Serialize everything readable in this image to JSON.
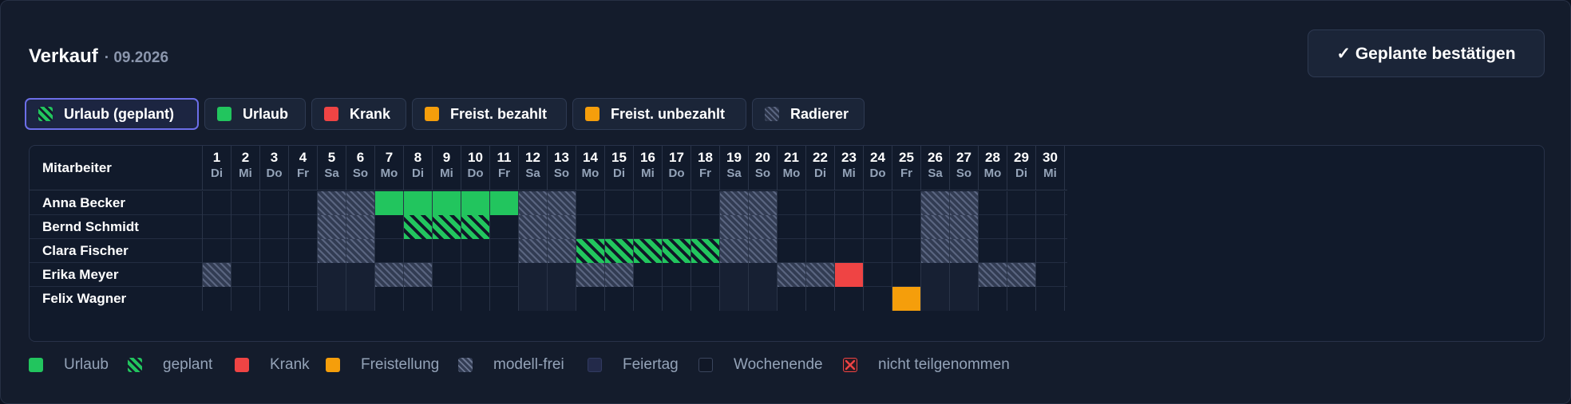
{
  "header": {
    "title": "Verkauf",
    "subtitle": "· 09.2026"
  },
  "actions": {
    "confirm_label": "✓ Geplante bestätigen"
  },
  "tools": [
    {
      "label": "Urlaub (geplant)",
      "swatch": "planned",
      "active": true
    },
    {
      "label": "Urlaub",
      "swatch": "green",
      "active": false
    },
    {
      "label": "Krank",
      "swatch": "red",
      "active": false
    },
    {
      "label": "Freist. bezahlt",
      "swatch": "orange",
      "active": false
    },
    {
      "label": "Freist. unbezahlt",
      "swatch": "orange",
      "active": false
    },
    {
      "label": "Radierer",
      "swatch": "eraser",
      "active": false
    }
  ],
  "grid": {
    "employee_header": "Mitarbeiter",
    "days": [
      {
        "n": "1",
        "wd": "Di"
      },
      {
        "n": "2",
        "wd": "Mi"
      },
      {
        "n": "3",
        "wd": "Do"
      },
      {
        "n": "4",
        "wd": "Fr"
      },
      {
        "n": "5",
        "wd": "Sa"
      },
      {
        "n": "6",
        "wd": "So"
      },
      {
        "n": "7",
        "wd": "Mo"
      },
      {
        "n": "8",
        "wd": "Di"
      },
      {
        "n": "9",
        "wd": "Mi"
      },
      {
        "n": "10",
        "wd": "Do"
      },
      {
        "n": "11",
        "wd": "Fr"
      },
      {
        "n": "12",
        "wd": "Sa"
      },
      {
        "n": "13",
        "wd": "So"
      },
      {
        "n": "14",
        "wd": "Mo"
      },
      {
        "n": "15",
        "wd": "Di"
      },
      {
        "n": "16",
        "wd": "Mi"
      },
      {
        "n": "17",
        "wd": "Do"
      },
      {
        "n": "18",
        "wd": "Fr"
      },
      {
        "n": "19",
        "wd": "Sa"
      },
      {
        "n": "20",
        "wd": "So"
      },
      {
        "n": "21",
        "wd": "Mo"
      },
      {
        "n": "22",
        "wd": "Di"
      },
      {
        "n": "23",
        "wd": "Mi"
      },
      {
        "n": "24",
        "wd": "Do"
      },
      {
        "n": "25",
        "wd": "Fr"
      },
      {
        "n": "26",
        "wd": "Sa"
      },
      {
        "n": "27",
        "wd": "So"
      },
      {
        "n": "28",
        "wd": "Mo"
      },
      {
        "n": "29",
        "wd": "Di"
      },
      {
        "n": "30",
        "wd": "Mi"
      }
    ],
    "employees": [
      {
        "name": "Anna Becker",
        "cells": [
          "",
          "",
          "",
          "",
          "free",
          "free",
          "vac",
          "vac",
          "vac",
          "vac",
          "vac",
          "free",
          "free",
          "",
          "",
          "",
          "",
          "",
          "free",
          "free",
          "",
          "",
          "",
          "",
          "",
          "free",
          "free",
          "",
          "",
          ""
        ]
      },
      {
        "name": "Bernd Schmidt",
        "cells": [
          "",
          "",
          "",
          "",
          "free",
          "free",
          "",
          "plan",
          "plan",
          "plan",
          "",
          "free",
          "free",
          "",
          "",
          "",
          "",
          "",
          "free",
          "free",
          "",
          "",
          "",
          "",
          "",
          "free",
          "free",
          "",
          "",
          ""
        ]
      },
      {
        "name": "Clara Fischer",
        "cells": [
          "",
          "",
          "",
          "",
          "free",
          "free",
          "",
          "",
          "",
          "",
          "",
          "free",
          "free",
          "plan",
          "plan",
          "plan",
          "plan",
          "plan",
          "free",
          "free",
          "",
          "",
          "",
          "",
          "",
          "free",
          "free",
          "",
          "",
          ""
        ]
      },
      {
        "name": "Erika Meyer",
        "cells": [
          "free",
          "",
          "",
          "",
          "",
          "",
          "free",
          "free",
          "",
          "",
          "",
          "",
          "",
          "free",
          "free",
          "",
          "",
          "",
          "",
          "",
          "free",
          "free",
          "sick",
          "",
          "",
          "",
          "",
          "free",
          "free",
          ""
        ]
      },
      {
        "name": "Felix Wagner",
        "cells": [
          "",
          "",
          "",
          "",
          "",
          "",
          "",
          "",
          "",
          "",
          "",
          "",
          "",
          "",
          "",
          "",
          "",
          "",
          "",
          "",
          "",
          "",
          "",
          "",
          "rel",
          "",
          "",
          "",
          "",
          ""
        ]
      }
    ]
  },
  "legend": [
    {
      "label": "Urlaub",
      "kind": "vac"
    },
    {
      "label": "geplant",
      "kind": "plan"
    },
    {
      "label": "Krank",
      "kind": "sick"
    },
    {
      "label": "Freistellung",
      "kind": "rel"
    },
    {
      "label": "modell-frei",
      "kind": "free"
    },
    {
      "label": "Feiertag",
      "kind": "hol"
    },
    {
      "label": "Wochenende",
      "kind": "we"
    },
    {
      "label": "nicht teilgenommen",
      "kind": "notp"
    }
  ],
  "colors": {
    "vacation": "#22c55e",
    "sick": "#ef4444",
    "release": "#f59e0b",
    "accent": "#6c6ee8"
  }
}
